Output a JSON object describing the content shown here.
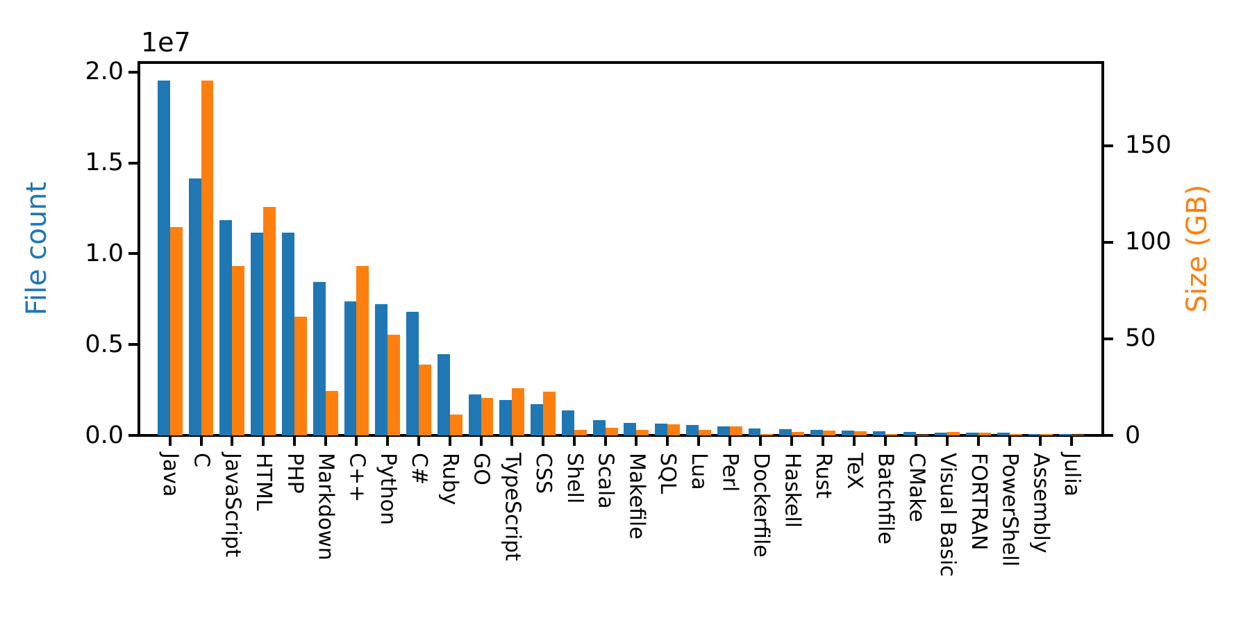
{
  "chart_data": {
    "type": "bar",
    "title": "",
    "grid": false,
    "legend_position": "none",
    "background_color": "#ffffff",
    "categories": [
      "Java",
      "C",
      "JavaScript",
      "HTML",
      "PHP",
      "Markdown",
      "C++",
      "Python",
      "C#",
      "Ruby",
      "GO",
      "TypeScript",
      "CSS",
      "Shell",
      "Scala",
      "Makefile",
      "SQL",
      "Lua",
      "Perl",
      "Dockerfile",
      "Haskell",
      "Rust",
      "TeX",
      "Batchfile",
      "CMake",
      "Visual Basic",
      "FORTRAN",
      "PowerShell",
      "Assembly",
      "Julia"
    ],
    "series": [
      {
        "name": "File count",
        "axis": "left",
        "color": "#1f77b4",
        "values": [
          19548190,
          14143113,
          11839883,
          11178557,
          11177610,
          8464626,
          7380520,
          7226626,
          6811652,
          4473331,
          2265436,
          1940406,
          1734406,
          1385648,
          835755,
          679430,
          656671,
          578554,
          497949,
          366505,
          340623,
          322431,
          251015,
          236945,
          175282,
          155652,
          142038,
          136846,
          82905,
          58317
        ]
      },
      {
        "name": "Size (GB)",
        "axis": "right",
        "color": "#ff7f0e",
        "values": [
          107.7,
          183.83,
          87.82,
          118.12,
          61.41,
          23.09,
          87.73,
          52.03,
          36.83,
          10.95,
          19.28,
          24.59,
          22.67,
          3.01,
          3.87,
          2.92,
          5.67,
          2.81,
          4.7,
          0.71,
          1.85,
          2.68,
          2.15,
          0.7,
          0.54,
          1.91,
          1.62,
          0.69,
          0.78,
          0.29
        ]
      }
    ],
    "left_axis": {
      "label": "File count",
      "label_color": "#1f77b4",
      "offset_text": "1e7",
      "tick_values": [
        0,
        5000000,
        10000000,
        15000000,
        20000000
      ],
      "tick_labels": [
        "0.0",
        "0.5",
        "1.0",
        "1.5",
        "2.0"
      ],
      "range": [
        0,
        20525600
      ]
    },
    "right_axis": {
      "label": "Size (GB)",
      "label_color": "#ff7f0e",
      "tick_values": [
        0,
        50,
        100,
        150
      ],
      "tick_labels": [
        "0",
        "50",
        "100",
        "150"
      ],
      "range": [
        0,
        193.0215
      ]
    },
    "x_axis": {
      "tick_label_rotation": 90,
      "bar_group_width": 0.8
    }
  },
  "colors": {
    "file_count": "#1f77b4",
    "size_gb": "#ff7f0e",
    "axis": "#000000",
    "background": "#ffffff"
  }
}
